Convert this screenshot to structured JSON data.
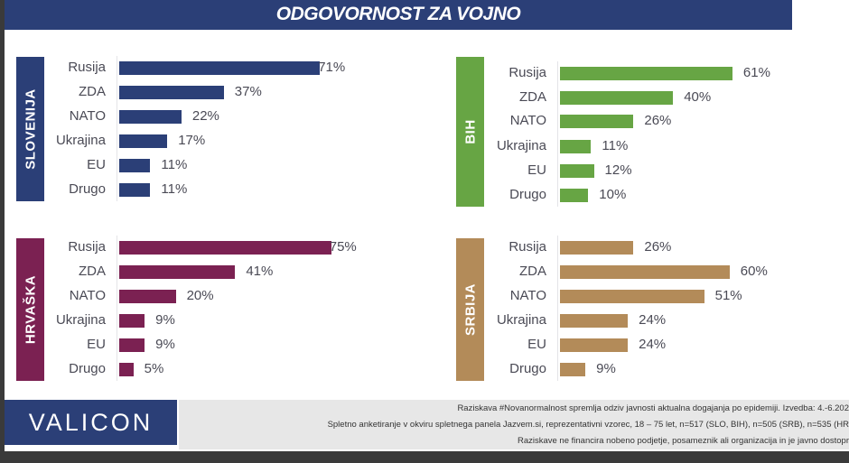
{
  "title": "ODGOVORNOST ZA VOJNO",
  "chart_data": [
    {
      "type": "bar",
      "orientation": "horizontal",
      "panel": "SLOVENIJA",
      "color": "#2b3f77",
      "categories": [
        "Rusija",
        "ZDA",
        "NATO",
        "Ukrajina",
        "EU",
        "Drugo"
      ],
      "values": [
        71,
        37,
        22,
        17,
        11,
        11
      ],
      "labels": [
        "71%",
        "37%",
        "22%",
        "17%",
        "11%",
        "11%"
      ]
    },
    {
      "type": "bar",
      "orientation": "horizontal",
      "panel": "BIH",
      "color": "#67a544",
      "categories": [
        "Rusija",
        "ZDA",
        "NATO",
        "Ukrajina",
        "EU",
        "Drugo"
      ],
      "values": [
        61,
        40,
        26,
        11,
        12,
        10
      ],
      "labels": [
        "61%",
        "40%",
        "26%",
        "11%",
        "12%",
        "10%"
      ]
    },
    {
      "type": "bar",
      "orientation": "horizontal",
      "panel": "HRVAŠKA",
      "color": "#7b2152",
      "categories": [
        "Rusija",
        "ZDA",
        "NATO",
        "Ukrajina",
        "EU",
        "Drugo"
      ],
      "values": [
        75,
        41,
        20,
        9,
        9,
        5
      ],
      "labels": [
        "75%",
        "41%",
        "20%",
        "9%",
        "9%",
        "5%"
      ]
    },
    {
      "type": "bar",
      "orientation": "horizontal",
      "panel": "SRBIJA",
      "color": "#b38b59",
      "categories": [
        "Rusija",
        "ZDA",
        "NATO",
        "Ukrajina",
        "EU",
        "Drugo"
      ],
      "values": [
        26,
        60,
        51,
        24,
        24,
        9
      ],
      "labels": [
        "26%",
        "60%",
        "51%",
        "24%",
        "24%",
        "9%"
      ]
    }
  ],
  "footer": {
    "logo": "VALICON",
    "line1": "Raziskava #Novanormalnost spremlja odziv javnosti aktualna dogajanja po epidemiji. Izvedba: 4.-6.202",
    "line2": "Spletno anketiranje v okviru spletnega panela Jazvem.si, reprezentativni vzorec, 18 – 75 let, n=517 (SLO, BIH), n=505 (SRB), n=535 (HR",
    "line3": "Raziskave ne financira nobeno podjetje, posameznik ali organizacija in je javno dostopr"
  }
}
